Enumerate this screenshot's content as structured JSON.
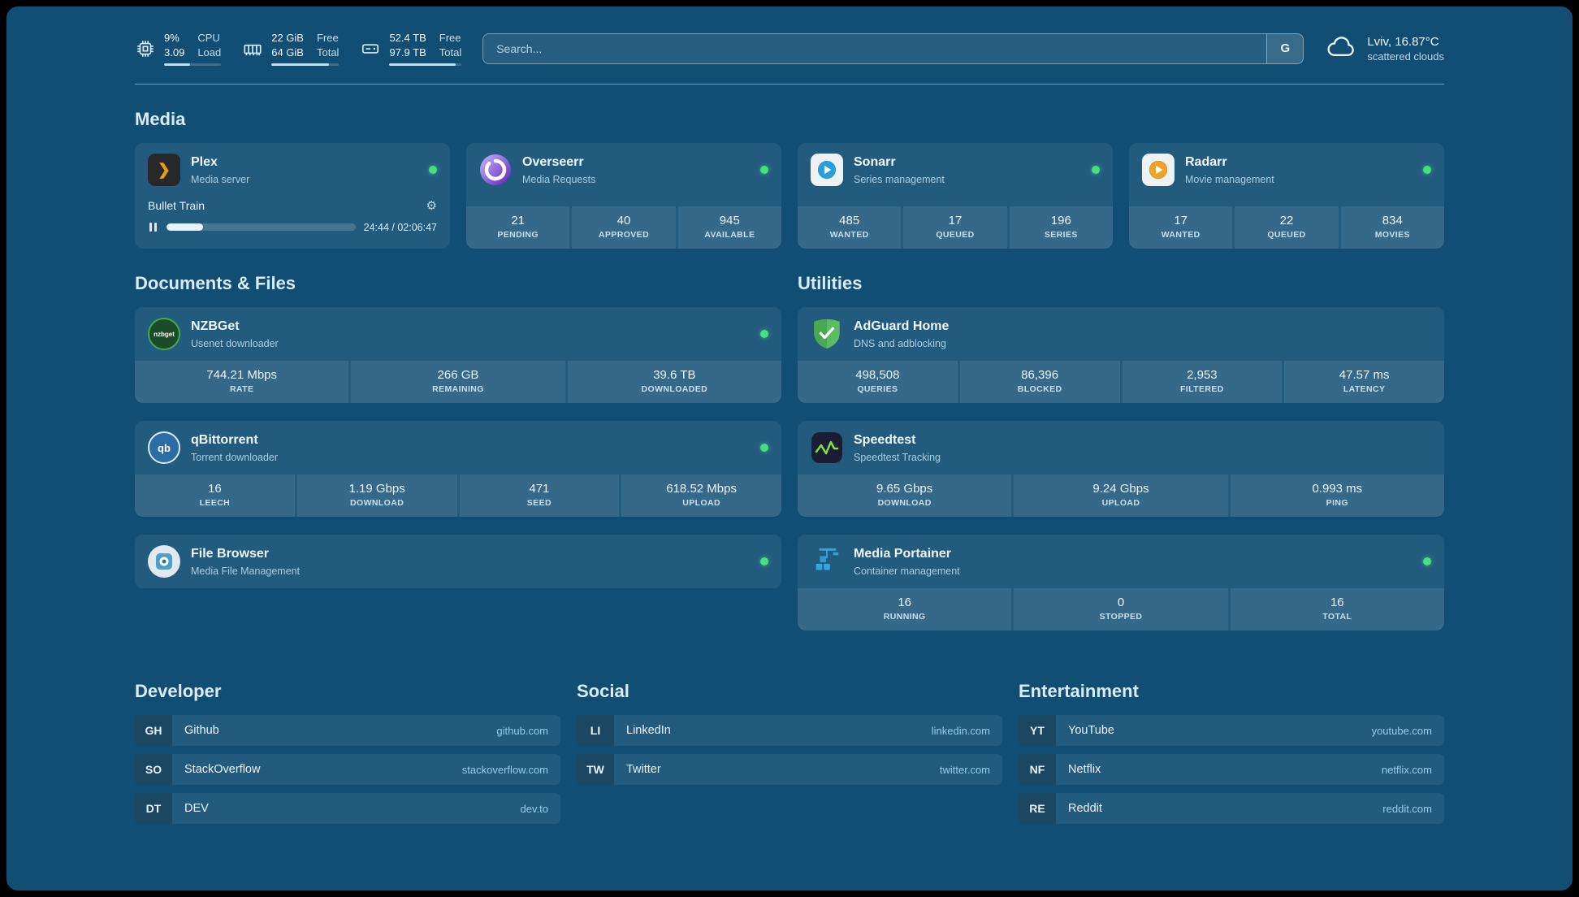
{
  "topbar": {
    "cpu": {
      "value_top": "9%",
      "value_bottom": "3.09",
      "label_top": "CPU",
      "label_bottom": "Load",
      "bar_pct": 45
    },
    "memory": {
      "value_top": "22 GiB",
      "value_bottom": "64 GiB",
      "label_top": "Free",
      "label_bottom": "Total",
      "bar_pct": 85
    },
    "disk": {
      "value_top": "52.4 TB",
      "value_bottom": "97.9 TB",
      "label_top": "Free",
      "label_bottom": "Total",
      "bar_pct": 92
    },
    "search": {
      "placeholder": "Search...",
      "button_label": "G"
    },
    "weather": {
      "location": "Lviv, 16.87°C",
      "condition": "scattered clouds"
    }
  },
  "media": {
    "title": "Media",
    "plex": {
      "name": "Plex",
      "subtitle": "Media server",
      "now_playing": "Bullet Train",
      "time": "24:44 / 02:06:47",
      "progress_pct": 19.5
    },
    "overseerr": {
      "name": "Overseerr",
      "subtitle": "Media Requests",
      "stats": [
        {
          "value": "21",
          "label": "PENDING"
        },
        {
          "value": "40",
          "label": "APPROVED"
        },
        {
          "value": "945",
          "label": "AVAILABLE"
        }
      ]
    },
    "sonarr": {
      "name": "Sonarr",
      "subtitle": "Series management",
      "stats": [
        {
          "value": "485",
          "label": "WANTED"
        },
        {
          "value": "17",
          "label": "QUEUED"
        },
        {
          "value": "196",
          "label": "SERIES"
        }
      ]
    },
    "radarr": {
      "name": "Radarr",
      "subtitle": "Movie management",
      "stats": [
        {
          "value": "17",
          "label": "WANTED"
        },
        {
          "value": "22",
          "label": "QUEUED"
        },
        {
          "value": "834",
          "label": "MOVIES"
        }
      ]
    }
  },
  "documents": {
    "title": "Documents & Files",
    "nzbget": {
      "name": "NZBGet",
      "subtitle": "Usenet downloader",
      "icon_text": "nzbget",
      "stats": [
        {
          "value": "744.21 Mbps",
          "label": "RATE"
        },
        {
          "value": "266 GB",
          "label": "REMAINING"
        },
        {
          "value": "39.6 TB",
          "label": "DOWNLOADED"
        }
      ]
    },
    "qbittorrent": {
      "name": "qBittorrent",
      "subtitle": "Torrent downloader",
      "icon_text": "qb",
      "stats": [
        {
          "value": "16",
          "label": "LEECH"
        },
        {
          "value": "1.19 Gbps",
          "label": "DOWNLOAD"
        },
        {
          "value": "471",
          "label": "SEED"
        },
        {
          "value": "618.52 Mbps",
          "label": "UPLOAD"
        }
      ]
    },
    "filebrowser": {
      "name": "File Browser",
      "subtitle": "Media File Management"
    }
  },
  "utilities": {
    "title": "Utilities",
    "adguard": {
      "name": "AdGuard Home",
      "subtitle": "DNS and adblocking",
      "stats": [
        {
          "value": "498,508",
          "label": "QUERIES"
        },
        {
          "value": "86,396",
          "label": "BLOCKED"
        },
        {
          "value": "2,953",
          "label": "FILTERED"
        },
        {
          "value": "47.57 ms",
          "label": "LATENCY"
        }
      ]
    },
    "speedtest": {
      "name": "Speedtest",
      "subtitle": "Speedtest Tracking",
      "stats": [
        {
          "value": "9.65 Gbps",
          "label": "DOWNLOAD"
        },
        {
          "value": "9.24 Gbps",
          "label": "UPLOAD"
        },
        {
          "value": "0.993 ms",
          "label": "PING"
        }
      ]
    },
    "portainer": {
      "name": "Media Portainer",
      "subtitle": "Container management",
      "stats": [
        {
          "value": "16",
          "label": "RUNNING"
        },
        {
          "value": "0",
          "label": "STOPPED"
        },
        {
          "value": "16",
          "label": "TOTAL"
        }
      ]
    }
  },
  "bookmarks": [
    {
      "title": "Developer",
      "items": [
        {
          "abbr": "GH",
          "name": "Github",
          "url": "github.com"
        },
        {
          "abbr": "SO",
          "name": "StackOverflow",
          "url": "stackoverflow.com"
        },
        {
          "abbr": "DT",
          "name": "DEV",
          "url": "dev.to"
        }
      ]
    },
    {
      "title": "Social",
      "items": [
        {
          "abbr": "LI",
          "name": "LinkedIn",
          "url": "linkedin.com"
        },
        {
          "abbr": "TW",
          "name": "Twitter",
          "url": "twitter.com"
        }
      ]
    },
    {
      "title": "Entertainment",
      "items": [
        {
          "abbr": "YT",
          "name": "YouTube",
          "url": "youtube.com"
        },
        {
          "abbr": "NF",
          "name": "Netflix",
          "url": "netflix.com"
        },
        {
          "abbr": "RE",
          "name": "Reddit",
          "url": "reddit.com"
        }
      ]
    }
  ]
}
